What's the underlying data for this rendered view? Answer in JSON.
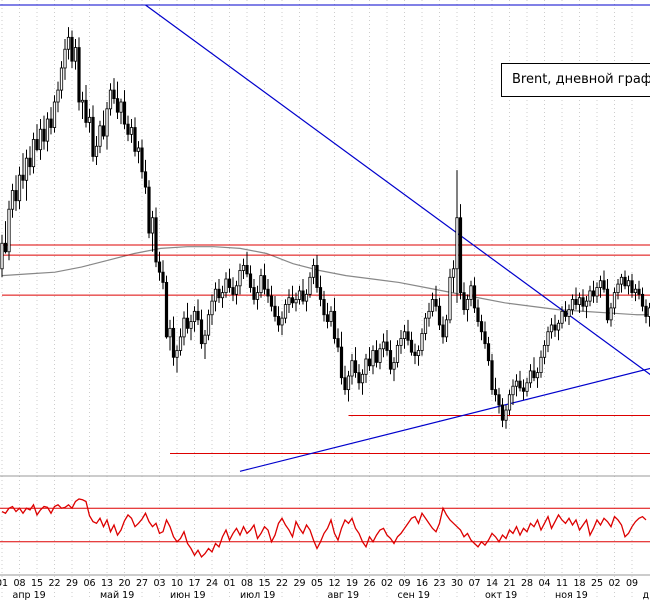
{
  "chart_data": {
    "type": "candlestick",
    "legend_text": "Brent, дневной графи",
    "day_ticks": [
      "01",
      "08",
      "15",
      "22",
      "29",
      "06",
      "13",
      "20",
      "27",
      "03",
      "10",
      "17",
      "24",
      "01",
      "08",
      "15",
      "22",
      "29",
      "05",
      "12",
      "19",
      "26",
      "02",
      "09",
      "16",
      "23",
      "30",
      "07",
      "14",
      "21",
      "28",
      "04",
      "11",
      "18",
      "25",
      "02",
      "09"
    ],
    "month_labels": [
      "апр 19",
      "май 19",
      "июн 19",
      "июл 19",
      "авг 19",
      "сен 19",
      "окт 19",
      "ноя 19",
      "д"
    ],
    "ohlc": [
      [
        66.0,
        68.0,
        65.5,
        67.5
      ],
      [
        67.5,
        68.8,
        66.9,
        67.0
      ],
      [
        67.0,
        70.0,
        66.5,
        69.5
      ],
      [
        69.5,
        71.0,
        69.0,
        70.6
      ],
      [
        70.6,
        71.5,
        69.4,
        70.0
      ],
      [
        70.0,
        72.0,
        69.5,
        71.5
      ],
      [
        71.5,
        72.8,
        70.7,
        71.2
      ],
      [
        71.2,
        73.0,
        70.0,
        72.5
      ],
      [
        72.5,
        73.2,
        71.5,
        72.0
      ],
      [
        72.0,
        74.0,
        71.6,
        73.6
      ],
      [
        73.6,
        74.5,
        72.9,
        73.0
      ],
      [
        73.0,
        74.8,
        72.4,
        74.2
      ],
      [
        74.2,
        75.0,
        73.0,
        73.5
      ],
      [
        73.5,
        75.2,
        72.9,
        74.8
      ],
      [
        74.8,
        75.5,
        73.9,
        74.3
      ],
      [
        74.3,
        76.2,
        74.0,
        75.8
      ],
      [
        75.8,
        77.0,
        75.2,
        76.5
      ],
      [
        76.5,
        78.2,
        76.0,
        77.8
      ],
      [
        77.8,
        79.5,
        77.1,
        78.9
      ],
      [
        78.9,
        80.2,
        78.3,
        79.6
      ],
      [
        79.6,
        80.0,
        77.8,
        78.2
      ],
      [
        78.2,
        79.5,
        77.7,
        79.0
      ],
      [
        79.0,
        79.6,
        75.3,
        75.8
      ],
      [
        75.8,
        76.4,
        74.8,
        75.9
      ],
      [
        75.9,
        76.8,
        74.3,
        74.6
      ],
      [
        74.6,
        75.4,
        74.0,
        74.9
      ],
      [
        74.9,
        75.6,
        72.3,
        72.6
      ],
      [
        72.6,
        73.8,
        72.1,
        73.2
      ],
      [
        73.2,
        74.7,
        72.8,
        74.4
      ],
      [
        74.4,
        75.3,
        73.6,
        73.8
      ],
      [
        73.8,
        75.8,
        73.0,
        75.4
      ],
      [
        75.4,
        76.9,
        75.0,
        76.5
      ],
      [
        76.5,
        77.2,
        75.7,
        76.0
      ],
      [
        76.0,
        77.0,
        74.8,
        75.2
      ],
      [
        75.2,
        76.0,
        74.5,
        75.8
      ],
      [
        75.8,
        76.5,
        74.2,
        74.5
      ],
      [
        74.5,
        75.0,
        73.5,
        73.9
      ],
      [
        73.9,
        74.8,
        73.4,
        74.3
      ],
      [
        74.3,
        74.9,
        72.6,
        72.9
      ],
      [
        72.9,
        73.5,
        72.2,
        73.1
      ],
      [
        73.1,
        73.6,
        71.3,
        71.7
      ],
      [
        71.7,
        72.4,
        70.4,
        70.8
      ],
      [
        70.8,
        71.2,
        67.8,
        68.1
      ],
      [
        68.1,
        69.4,
        67.0,
        69.0
      ],
      [
        69.0,
        69.6,
        66.1,
        66.4
      ],
      [
        66.4,
        67.0,
        65.3,
        65.8
      ],
      [
        65.8,
        66.5,
        64.8,
        65.2
      ],
      [
        65.2,
        65.6,
        61.9,
        62.0
      ],
      [
        62.0,
        63.0,
        61.2,
        62.5
      ],
      [
        62.5,
        63.2,
        60.3,
        60.8
      ],
      [
        60.8,
        61.5,
        59.9,
        61.2
      ],
      [
        61.2,
        62.5,
        60.9,
        62.0
      ],
      [
        62.0,
        63.5,
        61.5,
        63.1
      ],
      [
        63.1,
        64.0,
        62.2,
        62.5
      ],
      [
        62.5,
        63.3,
        61.8,
        62.9
      ],
      [
        62.9,
        63.8,
        62.3,
        63.5
      ],
      [
        63.5,
        64.2,
        62.7,
        63.0
      ],
      [
        63.0,
        63.6,
        61.3,
        61.6
      ],
      [
        61.6,
        62.4,
        60.7,
        62.1
      ],
      [
        62.1,
        63.6,
        61.8,
        63.3
      ],
      [
        63.3,
        64.5,
        62.7,
        64.1
      ],
      [
        64.1,
        65.2,
        63.5,
        64.8
      ],
      [
        64.8,
        65.4,
        64.0,
        64.3
      ],
      [
        64.3,
        65.0,
        63.7,
        64.6
      ],
      [
        64.6,
        65.8,
        64.3,
        65.4
      ],
      [
        65.4,
        66.0,
        64.6,
        64.9
      ],
      [
        64.9,
        65.5,
        64.1,
        64.5
      ],
      [
        64.5,
        65.3,
        63.9,
        65.0
      ],
      [
        65.0,
        66.3,
        64.5,
        65.9
      ],
      [
        65.9,
        66.6,
        65.4,
        66.2
      ],
      [
        66.2,
        67.0,
        65.5,
        65.7
      ],
      [
        65.7,
        66.2,
        64.6,
        64.9
      ],
      [
        64.9,
        65.4,
        63.9,
        64.2
      ],
      [
        64.2,
        65.0,
        63.6,
        64.6
      ],
      [
        64.6,
        66.0,
        64.3,
        65.6
      ],
      [
        65.6,
        66.3,
        64.5,
        64.8
      ],
      [
        64.8,
        65.4,
        64.0,
        64.4
      ],
      [
        64.4,
        65.0,
        63.5,
        63.8
      ],
      [
        63.8,
        64.4,
        62.9,
        63.2
      ],
      [
        63.2,
        63.8,
        62.3,
        62.7
      ],
      [
        62.7,
        63.5,
        62.1,
        63.1
      ],
      [
        63.1,
        64.2,
        62.8,
        63.9
      ],
      [
        63.9,
        64.8,
        63.4,
        64.3
      ],
      [
        64.3,
        65.0,
        63.7,
        64.0
      ],
      [
        64.0,
        64.6,
        63.5,
        64.2
      ],
      [
        64.2,
        65.0,
        63.9,
        64.7
      ],
      [
        64.7,
        65.4,
        63.9,
        64.1
      ],
      [
        64.1,
        64.8,
        63.5,
        64.5
      ],
      [
        64.5,
        65.8,
        64.3,
        65.5
      ],
      [
        65.5,
        66.6,
        65.1,
        66.2
      ],
      [
        66.2,
        66.8,
        64.6,
        64.9
      ],
      [
        64.9,
        65.6,
        63.8,
        64.2
      ],
      [
        64.2,
        64.7,
        62.9,
        63.3
      ],
      [
        63.3,
        64.0,
        62.5,
        62.9
      ],
      [
        62.9,
        63.8,
        62.6,
        63.5
      ],
      [
        63.5,
        64.3,
        61.6,
        61.9
      ],
      [
        61.9,
        62.5,
        61.1,
        61.4
      ],
      [
        61.4,
        62.3,
        59.2,
        59.6
      ],
      [
        59.6,
        60.3,
        58.6,
        58.9
      ],
      [
        58.9,
        60.0,
        58.2,
        59.7
      ],
      [
        59.7,
        61.0,
        59.2,
        60.6
      ],
      [
        60.6,
        61.4,
        59.6,
        59.9
      ],
      [
        59.9,
        60.4,
        58.9,
        59.3
      ],
      [
        59.3,
        60.1,
        58.6,
        59.8
      ],
      [
        59.8,
        61.0,
        59.3,
        60.7
      ],
      [
        60.7,
        61.4,
        60.0,
        60.3
      ],
      [
        60.3,
        61.5,
        59.8,
        61.2
      ],
      [
        61.2,
        61.8,
        60.2,
        60.5
      ],
      [
        60.5,
        61.6,
        60.1,
        61.3
      ],
      [
        61.3,
        62.2,
        60.8,
        61.7
      ],
      [
        61.7,
        62.4,
        60.9,
        61.2
      ],
      [
        61.2,
        61.8,
        59.8,
        60.1
      ],
      [
        60.1,
        60.8,
        59.4,
        60.5
      ],
      [
        60.5,
        61.8,
        60.2,
        61.5
      ],
      [
        61.5,
        62.4,
        61.0,
        61.9
      ],
      [
        61.9,
        62.7,
        61.3,
        62.3
      ],
      [
        62.3,
        63.0,
        61.5,
        61.8
      ],
      [
        61.8,
        62.3,
        60.9,
        61.1
      ],
      [
        61.1,
        61.6,
        60.4,
        60.9
      ],
      [
        60.9,
        61.5,
        60.3,
        61.2
      ],
      [
        61.2,
        62.5,
        60.9,
        62.2
      ],
      [
        62.2,
        63.4,
        61.8,
        63.1
      ],
      [
        63.1,
        64.0,
        62.6,
        63.5
      ],
      [
        63.5,
        64.6,
        63.2,
        64.2
      ],
      [
        64.2,
        65.0,
        63.5,
        63.8
      ],
      [
        63.8,
        64.3,
        62.4,
        62.7
      ],
      [
        62.7,
        63.2,
        61.6,
        62.0
      ],
      [
        62.0,
        63.3,
        61.7,
        63.0
      ],
      [
        63.0,
        66.0,
        62.8,
        65.5
      ],
      [
        65.5,
        66.5,
        64.6,
        66.0
      ],
      [
        66.0,
        71.8,
        64.0,
        69.0
      ],
      [
        69.0,
        69.8,
        64.2,
        64.6
      ],
      [
        64.6,
        65.2,
        63.3,
        63.6
      ],
      [
        63.6,
        64.5,
        62.9,
        64.2
      ],
      [
        64.2,
        65.3,
        63.8,
        65.0
      ],
      [
        65.0,
        65.5,
        63.4,
        63.7
      ],
      [
        63.7,
        64.2,
        62.6,
        62.9
      ],
      [
        62.9,
        63.3,
        61.8,
        62.3
      ],
      [
        62.3,
        62.9,
        61.3,
        61.6
      ],
      [
        61.6,
        62.0,
        60.3,
        60.6
      ],
      [
        60.6,
        61.0,
        58.6,
        58.9
      ],
      [
        58.9,
        59.6,
        58.2,
        58.6
      ],
      [
        58.6,
        59.0,
        57.5,
        58.0
      ],
      [
        58.0,
        58.4,
        56.7,
        57.1
      ],
      [
        57.1,
        58.0,
        56.6,
        57.7
      ],
      [
        57.7,
        58.9,
        57.4,
        58.6
      ],
      [
        58.6,
        59.5,
        58.0,
        59.1
      ],
      [
        59.1,
        59.8,
        58.5,
        59.4
      ],
      [
        59.4,
        60.0,
        58.8,
        59.0
      ],
      [
        59.0,
        59.5,
        58.3,
        58.8
      ],
      [
        58.8,
        59.6,
        58.5,
        59.3
      ],
      [
        59.3,
        60.4,
        59.0,
        60.0
      ],
      [
        60.0,
        60.8,
        59.4,
        59.6
      ],
      [
        59.6,
        60.2,
        59.0,
        59.9
      ],
      [
        59.9,
        61.2,
        59.6,
        60.8
      ],
      [
        60.8,
        61.8,
        60.4,
        61.5
      ],
      [
        61.5,
        62.6,
        61.1,
        62.3
      ],
      [
        62.3,
        63.1,
        61.9,
        62.7
      ],
      [
        62.7,
        63.3,
        62.0,
        62.4
      ],
      [
        62.4,
        63.0,
        61.8,
        62.8
      ],
      [
        62.8,
        63.8,
        62.5,
        63.5
      ],
      [
        63.5,
        64.1,
        62.9,
        63.2
      ],
      [
        63.2,
        63.9,
        62.7,
        63.6
      ],
      [
        63.6,
        64.5,
        63.3,
        64.2
      ],
      [
        64.2,
        64.9,
        63.6,
        63.9
      ],
      [
        63.9,
        64.6,
        63.4,
        64.3
      ],
      [
        64.3,
        64.8,
        63.5,
        63.8
      ],
      [
        63.8,
        64.4,
        63.1,
        64.1
      ],
      [
        64.1,
        65.0,
        63.8,
        64.7
      ],
      [
        64.7,
        65.3,
        64.0,
        64.4
      ],
      [
        64.4,
        65.2,
        64.0,
        64.9
      ],
      [
        64.9,
        65.6,
        64.3,
        65.3
      ],
      [
        65.3,
        65.9,
        64.6,
        64.8
      ],
      [
        64.8,
        65.4,
        62.8,
        63.0
      ],
      [
        63.0,
        64.0,
        62.6,
        63.7
      ],
      [
        63.7,
        64.9,
        63.3,
        64.6
      ],
      [
        64.6,
        65.4,
        64.2,
        65.1
      ],
      [
        65.1,
        65.7,
        64.6,
        65.5
      ],
      [
        65.5,
        65.9,
        64.8,
        65.0
      ],
      [
        65.0,
        65.6,
        64.5,
        65.3
      ],
      [
        65.3,
        65.7,
        64.3,
        64.6
      ],
      [
        64.6,
        65.1,
        64.1,
        64.8
      ],
      [
        64.8,
        65.3,
        64.2,
        64.5
      ],
      [
        64.5,
        64.9,
        63.5,
        63.8
      ],
      [
        63.8,
        64.2,
        62.8,
        63.2
      ],
      [
        63.2,
        64.0,
        62.6,
        63.7
      ],
      [
        63.7,
        64.8,
        63.3,
        64.5
      ],
      [
        64.5,
        65.5,
        64.2,
        65.2
      ],
      [
        65.2,
        66.0,
        64.8,
        65.8
      ],
      [
        65.8,
        66.4,
        65.3,
        66.0
      ]
    ],
    "ma_y": [
      65.6,
      65.7,
      65.8,
      66.1,
      66.5,
      66.9,
      67.2,
      67.3,
      67.3,
      67.2,
      66.9,
      66.3,
      65.9,
      65.6,
      65.4,
      65.2,
      64.9,
      64.6,
      64.3,
      64.0,
      63.8,
      63.6,
      63.5,
      63.4,
      63.3,
      63.3
    ],
    "rsi": [
      66,
      64,
      70,
      72,
      66,
      70,
      64,
      70,
      68,
      74,
      62,
      68,
      72,
      71,
      64,
      72,
      74,
      70,
      71,
      74,
      70,
      78,
      81,
      80,
      78,
      61,
      54,
      52,
      58,
      48,
      56,
      42,
      50,
      38,
      44,
      55,
      62,
      58,
      48,
      52,
      57,
      64,
      54,
      48,
      52,
      40,
      42,
      56,
      48,
      36,
      30,
      34,
      42,
      28,
      22,
      14,
      20,
      12,
      16,
      22,
      18,
      28,
      24,
      36,
      44,
      32,
      40,
      46,
      38,
      48,
      40,
      44,
      50,
      34,
      40,
      48,
      44,
      30,
      38,
      52,
      58,
      50,
      44,
      36,
      54,
      46,
      40,
      50,
      44,
      32,
      22,
      30,
      40,
      46,
      56,
      40,
      32,
      46,
      56,
      52,
      58,
      46,
      40,
      30,
      24,
      36,
      30,
      38,
      44,
      46,
      38,
      34,
      28,
      36,
      40,
      46,
      52,
      58,
      60,
      52,
      64,
      58,
      52,
      46,
      42,
      52,
      70,
      62,
      56,
      52,
      48,
      44,
      36,
      40,
      32,
      28,
      24,
      30,
      26,
      32,
      40,
      36,
      30,
      38,
      34,
      44,
      40,
      48,
      38,
      46,
      42,
      52,
      48,
      56,
      44,
      52,
      60,
      46,
      54,
      62,
      56,
      52,
      58,
      50,
      56,
      44,
      50,
      56,
      38,
      46,
      56,
      50,
      58,
      54,
      48,
      60,
      56,
      50,
      36,
      40,
      48,
      54,
      58,
      60,
      56
    ],
    "y_range": [
      55.0,
      81.5
    ],
    "rsi_range": [
      0,
      100
    ],
    "horizontal_lines": [
      {
        "y": 67.4,
        "start": 0,
        "color": "#dd0000"
      },
      {
        "y": 66.8,
        "start": 0,
        "color": "#dd0000"
      },
      {
        "y": 64.45,
        "start": 0,
        "color": "#dd0000"
      },
      {
        "y": 57.38,
        "start": 99,
        "color": "#dd0000"
      },
      {
        "y": 55.15,
        "start": 48,
        "color": "#dd0000"
      }
    ],
    "trend_lines": [
      {
        "p1": [
          41,
          81.5
        ],
        "p2": [
          132,
          67.8
        ],
        "color": "#0000cc"
      },
      {
        "p1": [
          68,
          54.1
        ],
        "p2": [
          132,
          57.4
        ],
        "color": "#0000cc"
      }
    ],
    "rsi_levels": [
      70,
      30
    ],
    "vgrid": true,
    "colors": {
      "candle": "#000000",
      "ma": "#888888",
      "rsi": "#dd0000",
      "levels": "#dd0000",
      "trend": "#0000cc",
      "grid": "#cccccc"
    }
  }
}
